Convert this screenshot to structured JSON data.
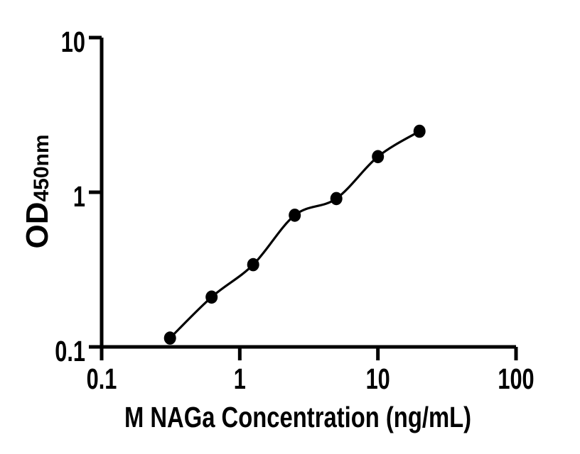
{
  "figure": {
    "background": "#ffffff",
    "foreground": "#000000"
  },
  "chart_data": {
    "type": "scatter",
    "title": "",
    "xlabel": "M NAGa Concentration (ng/mL)",
    "ylabel": "OD",
    "ylabel_subscript": "450nm",
    "x_scale": "log10",
    "y_scale": "log10",
    "xlim": [
      0.1,
      100
    ],
    "ylim": [
      0.1,
      10
    ],
    "x_ticks": {
      "values": [
        0.1,
        1,
        10,
        100
      ],
      "labels": [
        "0.1",
        "1",
        "10",
        "100"
      ]
    },
    "y_ticks": {
      "values": [
        0.1,
        1,
        10
      ],
      "labels": [
        "0.1",
        "1",
        "10"
      ]
    },
    "grid": false,
    "legend": false,
    "series": [
      {
        "marker": "filled-circle",
        "marker_color": "#000000",
        "line": "smooth-fit",
        "line_color": "#000000",
        "x": [
          0.3125,
          0.625,
          1.25,
          2.5,
          5,
          10,
          20
        ],
        "y": [
          0.114,
          0.21,
          0.34,
          0.71,
          0.91,
          1.7,
          2.48
        ]
      }
    ]
  }
}
